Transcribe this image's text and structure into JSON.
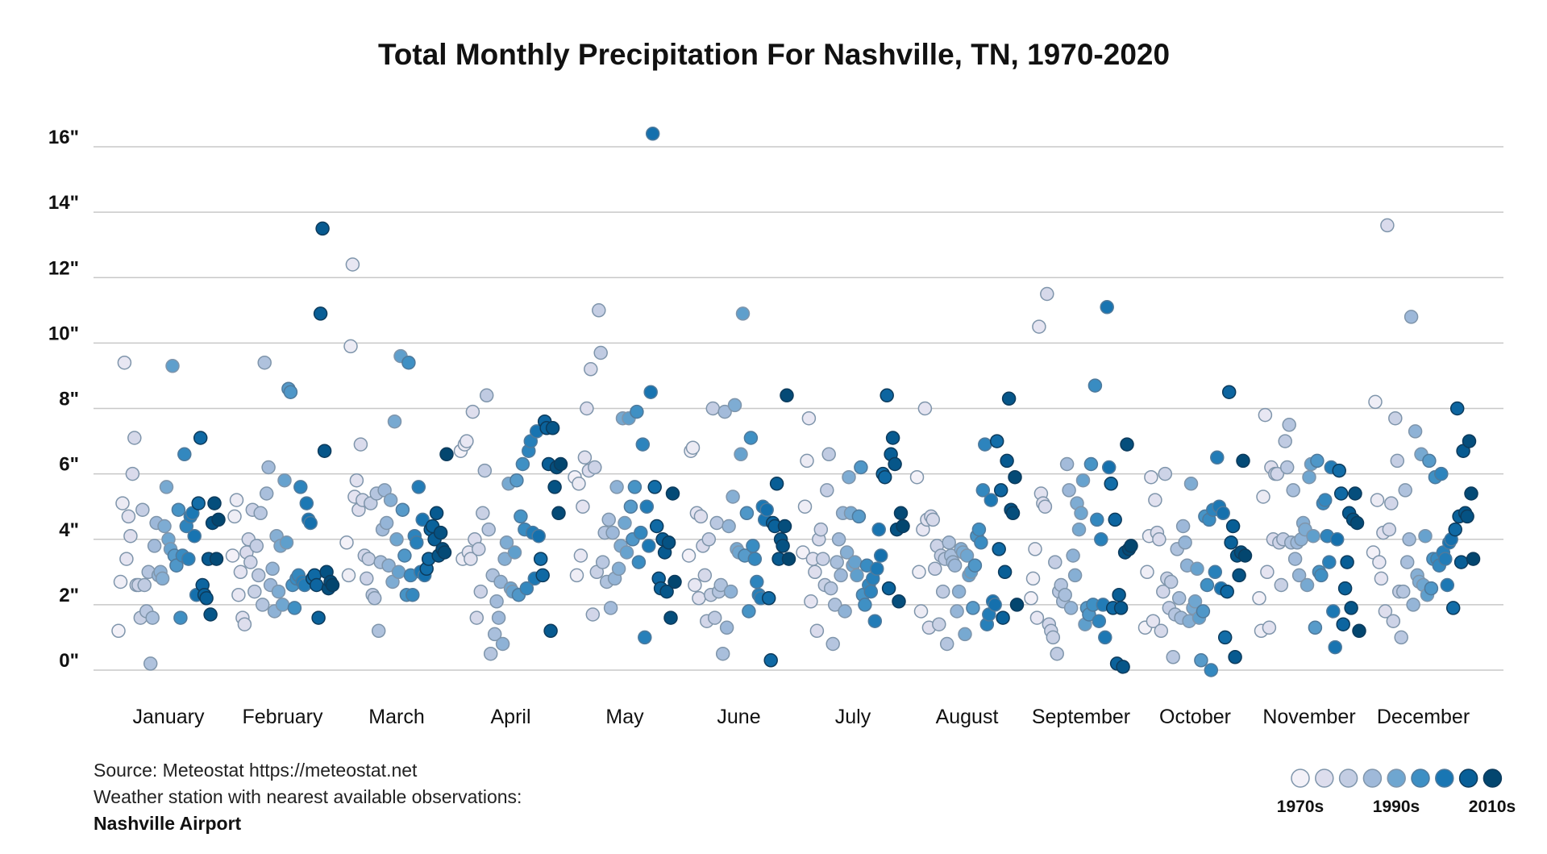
{
  "chart_data": {
    "type": "scatter",
    "title": "Total Monthly Precipitation For Nashville, TN, 1970-2020",
    "ylim": [
      0,
      16
    ],
    "y_ticks": [
      "0\"",
      "2\"",
      "4\"",
      "6\"",
      "8\"",
      "10\"",
      "12\"",
      "14\"",
      "16\""
    ],
    "y_tick_values": [
      0,
      2,
      4,
      6,
      8,
      10,
      12,
      14,
      16
    ],
    "grid": true,
    "x_order_within_month": "year",
    "years": [
      1970,
      2020
    ],
    "color_scale": [
      "#f3f1f8",
      "#dddded",
      "#c3cde3",
      "#9fb9d9",
      "#6fa6d0",
      "#3d8fc4",
      "#1976b3",
      "#085f98",
      "#03466f"
    ],
    "months": [
      {
        "label": "January",
        "values": [
          1.2,
          2.7,
          5.1,
          9.4,
          3.4,
          4.7,
          4.1,
          6.0,
          7.1,
          2.6,
          2.6,
          1.6,
          4.9,
          2.6,
          1.8,
          3.0,
          0.2,
          1.6,
          3.8,
          4.5,
          2.9,
          3.0,
          2.8,
          4.4,
          5.6,
          4.0,
          3.7,
          9.3,
          3.5,
          3.2,
          4.9,
          1.6,
          3.5,
          6.6,
          4.4,
          3.4,
          4.7,
          4.8,
          4.1,
          2.3,
          5.1,
          7.1,
          2.6,
          2.3,
          2.2,
          3.4,
          1.7,
          4.5,
          5.1,
          3.4,
          4.6
        ]
      },
      {
        "label": "February",
        "values": [
          3.5,
          4.7,
          5.2,
          2.3,
          3.0,
          1.6,
          1.4,
          3.6,
          4.0,
          3.3,
          4.9,
          2.4,
          3.8,
          2.9,
          4.8,
          2.0,
          9.4,
          5.4,
          6.2,
          2.6,
          3.1,
          1.8,
          4.1,
          2.4,
          3.8,
          2.0,
          5.8,
          3.9,
          8.6,
          8.5,
          2.6,
          1.9,
          2.8,
          2.9,
          5.6,
          2.7,
          2.6,
          5.1,
          4.6,
          4.5,
          2.8,
          2.9,
          2.6,
          1.6,
          10.9,
          13.5,
          6.7,
          3.0,
          2.5,
          2.7,
          2.6
        ]
      },
      {
        "label": "March",
        "values": [
          3.9,
          2.9,
          9.9,
          12.4,
          5.3,
          5.8,
          4.9,
          6.9,
          5.2,
          3.5,
          2.8,
          3.4,
          5.1,
          2.3,
          2.2,
          5.4,
          1.2,
          3.3,
          4.3,
          5.5,
          4.5,
          3.2,
          5.2,
          2.7,
          7.6,
          4.0,
          3.0,
          9.6,
          4.9,
          3.5,
          2.3,
          9.4,
          2.9,
          2.3,
          4.1,
          3.9,
          5.6,
          3.0,
          4.6,
          2.9,
          3.1,
          3.4,
          4.3,
          4.4,
          4.0,
          4.8,
          3.5,
          4.2,
          3.7,
          3.6,
          6.6
        ]
      },
      {
        "label": "April",
        "values": [
          6.7,
          3.4,
          6.9,
          7.0,
          3.6,
          3.4,
          7.9,
          4.0,
          1.6,
          3.7,
          2.4,
          4.8,
          6.1,
          8.4,
          4.3,
          0.5,
          2.9,
          1.1,
          2.1,
          1.6,
          2.7,
          0.8,
          3.4,
          3.9,
          5.7,
          2.5,
          2.4,
          3.6,
          5.8,
          2.3,
          4.7,
          6.3,
          4.3,
          2.5,
          6.7,
          7.0,
          4.2,
          2.8,
          7.3,
          4.1,
          3.4,
          2.9,
          7.6,
          7.4,
          6.3,
          1.2,
          7.4,
          5.6,
          6.2,
          4.8,
          6.3
        ]
      },
      {
        "label": "May",
        "values": [
          5.9,
          2.9,
          5.7,
          3.5,
          5.0,
          6.5,
          8.0,
          6.1,
          9.2,
          1.7,
          6.2,
          3.0,
          11.0,
          9.7,
          3.3,
          4.2,
          2.7,
          4.6,
          1.9,
          4.2,
          2.8,
          5.6,
          3.1,
          3.8,
          7.7,
          4.5,
          3.6,
          7.7,
          5.0,
          4.0,
          5.6,
          7.9,
          3.3,
          4.2,
          6.9,
          1.0,
          5.0,
          3.8,
          8.5,
          16.4,
          5.6,
          4.4,
          2.8,
          2.5,
          4.0,
          3.6,
          2.4,
          3.9,
          1.6,
          5.4,
          2.7
        ]
      },
      {
        "label": "June",
        "values": [
          3.5,
          6.7,
          6.8,
          2.6,
          4.8,
          2.2,
          4.7,
          3.8,
          2.9,
          1.5,
          4.0,
          2.3,
          8.0,
          1.6,
          4.5,
          2.4,
          2.6,
          0.5,
          7.9,
          1.3,
          4.4,
          2.4,
          5.3,
          8.1,
          3.7,
          3.6,
          6.6,
          10.9,
          3.5,
          4.8,
          1.8,
          7.1,
          3.8,
          3.4,
          2.7,
          2.3,
          2.2,
          5.0,
          4.6,
          4.9,
          2.2,
          0.3,
          4.5,
          4.4,
          5.7,
          3.4,
          4.0,
          3.8,
          4.4,
          8.4,
          3.4
        ]
      },
      {
        "label": "July",
        "values": [
          3.6,
          5.0,
          6.4,
          7.7,
          2.1,
          3.4,
          3.0,
          1.2,
          4.0,
          4.3,
          3.4,
          2.6,
          5.5,
          6.6,
          2.5,
          0.8,
          2.0,
          3.3,
          4.0,
          2.9,
          4.8,
          1.8,
          3.6,
          5.9,
          4.8,
          3.2,
          3.3,
          2.9,
          4.7,
          6.2,
          2.3,
          2.0,
          3.2,
          2.6,
          2.4,
          2.8,
          1.5,
          3.1,
          4.3,
          3.5,
          6.0,
          5.9,
          8.4,
          2.5,
          6.6,
          7.1,
          6.3,
          4.3,
          2.1,
          4.8,
          4.4
        ]
      },
      {
        "label": "August",
        "values": [
          5.9,
          3.0,
          1.8,
          4.3,
          8.0,
          4.6,
          1.3,
          4.7,
          4.6,
          3.1,
          3.8,
          1.4,
          3.5,
          2.4,
          3.4,
          0.8,
          3.9,
          3.5,
          3.3,
          3.2,
          1.8,
          2.4,
          3.7,
          3.6,
          1.1,
          3.5,
          2.9,
          3.0,
          1.9,
          3.2,
          4.1,
          4.3,
          3.9,
          5.5,
          6.9,
          1.4,
          1.7,
          5.2,
          2.1,
          2.0,
          7.0,
          3.7,
          5.5,
          1.6,
          3.0,
          6.4,
          8.3,
          4.9,
          4.8,
          5.9,
          2.0
        ]
      },
      {
        "label": "September",
        "values": [
          2.2,
          2.8,
          3.7,
          1.6,
          10.5,
          5.4,
          5.1,
          5.0,
          11.5,
          1.4,
          1.2,
          1.0,
          3.3,
          0.5,
          2.4,
          2.6,
          2.1,
          2.3,
          6.3,
          5.5,
          1.9,
          3.5,
          2.9,
          5.1,
          4.3,
          4.8,
          5.8,
          1.4,
          1.9,
          1.7,
          6.3,
          2.0,
          8.7,
          4.6,
          1.5,
          4.0,
          2.0,
          1.0,
          11.1,
          6.2,
          5.7,
          1.9,
          4.6,
          0.2,
          2.3,
          1.9,
          0.1,
          3.6,
          6.9,
          3.7,
          3.8
        ]
      },
      {
        "label": "October",
        "values": [
          1.3,
          3.0,
          4.1,
          5.9,
          1.5,
          5.2,
          4.2,
          4.0,
          1.2,
          2.4,
          6.0,
          2.8,
          1.9,
          2.7,
          0.4,
          1.7,
          3.7,
          2.2,
          1.6,
          4.4,
          3.9,
          3.2,
          1.5,
          5.7,
          1.9,
          2.1,
          3.1,
          1.6,
          0.3,
          1.8,
          4.7,
          2.6,
          4.6,
          0.0,
          4.9,
          3.0,
          6.5,
          5.0,
          2.5,
          4.8,
          1.0,
          2.4,
          8.5,
          3.9,
          4.4,
          0.4,
          3.5,
          2.9,
          3.6,
          6.4,
          3.5
        ]
      },
      {
        "label": "November",
        "values": [
          2.2,
          1.2,
          5.3,
          7.8,
          3.0,
          1.3,
          6.2,
          4.0,
          6.0,
          6.0,
          3.9,
          2.6,
          4.0,
          7.0,
          6.2,
          7.5,
          3.9,
          5.5,
          3.4,
          3.9,
          2.9,
          4.0,
          4.5,
          4.3,
          2.6,
          5.9,
          6.3,
          4.1,
          1.3,
          6.4,
          3.0,
          2.9,
          5.1,
          5.2,
          4.1,
          3.3,
          6.2,
          1.8,
          0.7,
          4.0,
          6.1,
          5.4,
          1.4,
          2.5,
          3.3,
          4.8,
          1.9,
          4.6,
          5.4,
          4.5,
          1.2
        ]
      },
      {
        "label": "December",
        "values": [
          3.6,
          8.2,
          5.2,
          3.3,
          2.8,
          4.2,
          1.8,
          13.6,
          4.3,
          5.1,
          1.5,
          7.7,
          6.4,
          2.4,
          1.0,
          2.4,
          5.5,
          3.3,
          4.0,
          10.8,
          2.0,
          7.3,
          2.9,
          2.7,
          6.6,
          2.6,
          4.1,
          2.3,
          6.4,
          2.5,
          3.4,
          5.9,
          3.4,
          3.2,
          6.0,
          3.6,
          3.4,
          2.6,
          3.9,
          4.0,
          1.9,
          4.3,
          8.0,
          4.7,
          3.3,
          6.7,
          4.8,
          4.7,
          7.0,
          5.4,
          3.4
        ]
      }
    ],
    "legend": {
      "placement": "bottom-right",
      "labels": [
        "1970s",
        "1990s",
        "2010s"
      ]
    }
  },
  "footer": {
    "source": "Source: Meteostat https://meteostat.net",
    "station_note": "Weather station with nearest available observations:",
    "station": "Nashville Airport"
  }
}
